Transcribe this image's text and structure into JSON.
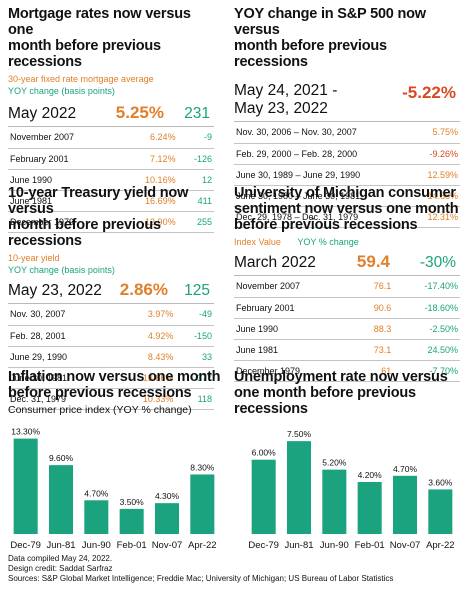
{
  "mortgage": {
    "title_line1": "Mortgage rates now versus one",
    "title_line2": "month before previous recessions",
    "legend1": "30-year fixed rate mortgage average",
    "legend2": "YOY change (basis points)",
    "current": {
      "label": "May 2022",
      "value": "5.25%",
      "change": "231"
    },
    "rows": [
      {
        "date": "November 2007",
        "value": "6.24%",
        "change": "-9"
      },
      {
        "date": "February 2001",
        "value": "7.12%",
        "change": "-126"
      },
      {
        "date": "June 1990",
        "value": "10.16%",
        "change": "12"
      },
      {
        "date": "June 1981",
        "value": "16.69%",
        "change": "411"
      },
      {
        "date": "December 1979",
        "value": "12.90%",
        "change": "255"
      }
    ]
  },
  "sp500": {
    "title_line1": "YOY change in S&P 500 now versus",
    "title_line2": "month before previous recessions",
    "current": {
      "label_line1": "May 24, 2021 -",
      "label_line2": "May 23, 2022",
      "value": "-5.22%"
    },
    "rows": [
      {
        "period": "Nov. 30, 2006 – Nov. 30, 2007",
        "value": "5.75%"
      },
      {
        "period": "Feb. 29, 2000 – Feb. 28, 2000",
        "value": "-9.26%"
      },
      {
        "period": "June 30, 1989 – June 29, 1990",
        "value": "12.59%"
      },
      {
        "period": "June 30, 1980 – June 30, 1981",
        "value": "14.85%"
      },
      {
        "period": "Dec. 29, 1978 – Dec. 31, 1979",
        "value": "12.31%"
      }
    ]
  },
  "treasury": {
    "title_line1": "10-year Treasury yield now versus",
    "title_line2": "month before previous recessions",
    "legend1": "10-year yield",
    "legend2": "YOY change (basis points)",
    "current": {
      "label": "May 23, 2022",
      "value": "2.86%",
      "change": "125"
    },
    "rows": [
      {
        "date": "Nov. 30, 2007",
        "value": "3.97%",
        "change": "-49"
      },
      {
        "date": "Feb. 28, 2001",
        "value": "4.92%",
        "change": "-150"
      },
      {
        "date": "June 29, 1990",
        "value": "8.43%",
        "change": "33"
      },
      {
        "date": "June 30, 1981",
        "value": "13.86%",
        "change": "377"
      },
      {
        "date": "Dec. 31, 1979",
        "value": "10.33%",
        "change": "118"
      }
    ]
  },
  "sentiment": {
    "title_line1": "University of Michigan consumer",
    "title_line2": "sentiment now versus one month",
    "title_line3": "before previous recessions",
    "legend1": "Index Value",
    "legend2": "YOY % change",
    "current": {
      "label": "March 2022",
      "value": "59.4",
      "change": "-30%"
    },
    "rows": [
      {
        "date": "November 2007",
        "value": "76.1",
        "change": "-17.40%"
      },
      {
        "date": "February 2001",
        "value": "90.6",
        "change": "-18.60%"
      },
      {
        "date": "June 1990",
        "value": "88.3",
        "change": "-2.50%"
      },
      {
        "date": "June 1981",
        "value": "73.1",
        "change": "24.50%"
      },
      {
        "date": "December 1979",
        "value": "61",
        "change": "-7.70%"
      }
    ]
  },
  "inflation": {
    "title_line1": "Inflation now versus one month",
    "title_line2": "before previous recessions",
    "subtitle": "Consumer price index (YOY % change)"
  },
  "unemployment": {
    "title_line1": "Unemployment rate now versus",
    "title_line2": "one month before previous",
    "title_line3": "recessions"
  },
  "footer": {
    "line1": "Data compiled May 24, 2022.",
    "line2": "Design credit: Saddat Sarfraz",
    "line3": "Sources: S&P Global Market Intelligence; Freddie Mac; University of Michigan; US Bureau of Labor Statistics"
  },
  "colors": {
    "bar": "#1aa37e",
    "primary": "#e0802a",
    "secondary": "#1aa37e",
    "negative": "#d84a22"
  },
  "chart_data": [
    {
      "type": "bar",
      "title": "Inflation now versus one month before previous recessions",
      "subtitle": "Consumer price index (YOY % change)",
      "categories": [
        "Dec-79",
        "Jun-81",
        "Jun-90",
        "Feb-01",
        "Nov-07",
        "Apr-22"
      ],
      "values": [
        13.3,
        9.6,
        4.7,
        3.5,
        4.3,
        8.3
      ],
      "labels": [
        "13.30%",
        "9.60%",
        "4.70%",
        "3.50%",
        "4.30%",
        "8.30%"
      ],
      "ylim": [
        0,
        14.5
      ]
    },
    {
      "type": "bar",
      "title": "Unemployment rate now versus one month before previous recessions",
      "categories": [
        "Dec-79",
        "Jun-81",
        "Jun-90",
        "Feb-01",
        "Nov-07",
        "Apr-22"
      ],
      "values": [
        6.0,
        7.5,
        5.2,
        4.2,
        4.7,
        3.6
      ],
      "labels": [
        "6.00%",
        "7.50%",
        "5.20%",
        "4.20%",
        "4.70%",
        "3.60%"
      ],
      "ylim": [
        0,
        8.4
      ]
    }
  ]
}
